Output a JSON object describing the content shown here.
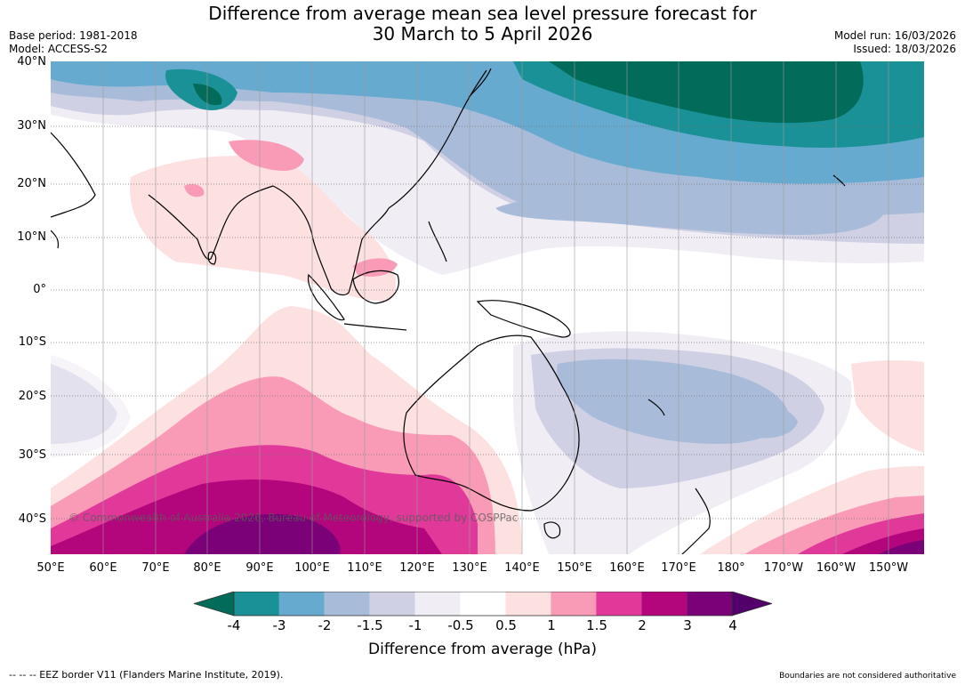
{
  "title": {
    "line1": "Difference from average mean sea level pressure forecast for",
    "line2": "30 March to 5 April 2026"
  },
  "meta": {
    "base_period": "Base period: 1981-2018",
    "model": "Model: ACCESS-S2",
    "model_run": "Model run: 16/03/2026",
    "issued": "Issued: 18/03/2026"
  },
  "map": {
    "lat_labels": [
      "40°N",
      "30°N",
      "20°N",
      "10°N",
      "0°",
      "10°S",
      "20°S",
      "30°S",
      "40°S"
    ],
    "lon_labels": [
      "50°E",
      "60°E",
      "70°E",
      "80°E",
      "90°E",
      "100°E",
      "110°E",
      "120°E",
      "130°E",
      "140°E",
      "150°E",
      "160°E",
      "170°E",
      "180°",
      "170°W",
      "160°W",
      "150°W"
    ],
    "copyright": "© Commonwealth of Australia 2026, Bureau of Meteorology, supported by COSPPac"
  },
  "colorbar": {
    "label": "Difference from average (hPa)",
    "ticks": [
      "-4",
      "-3",
      "-2",
      "-1.5",
      "-1",
      "-0.5",
      "0.5",
      "1",
      "1.5",
      "2",
      "3",
      "4"
    ],
    "colors": [
      "#1a9196",
      "#66aacf",
      "#a8bcd9",
      "#cfd0e4",
      "#f1edf5",
      "#ffffff",
      "#fde0e0",
      "#f99bb7",
      "#e0399a",
      "#b3057c",
      "#7a0177"
    ],
    "under_color": "#036b5a",
    "over_color": "#52006a"
  },
  "footer": {
    "eez": "--  --  -- EEZ border V11 (Flanders Marine Institute, 2019).",
    "boundaries": "Boundaries are not considered authoritative"
  }
}
